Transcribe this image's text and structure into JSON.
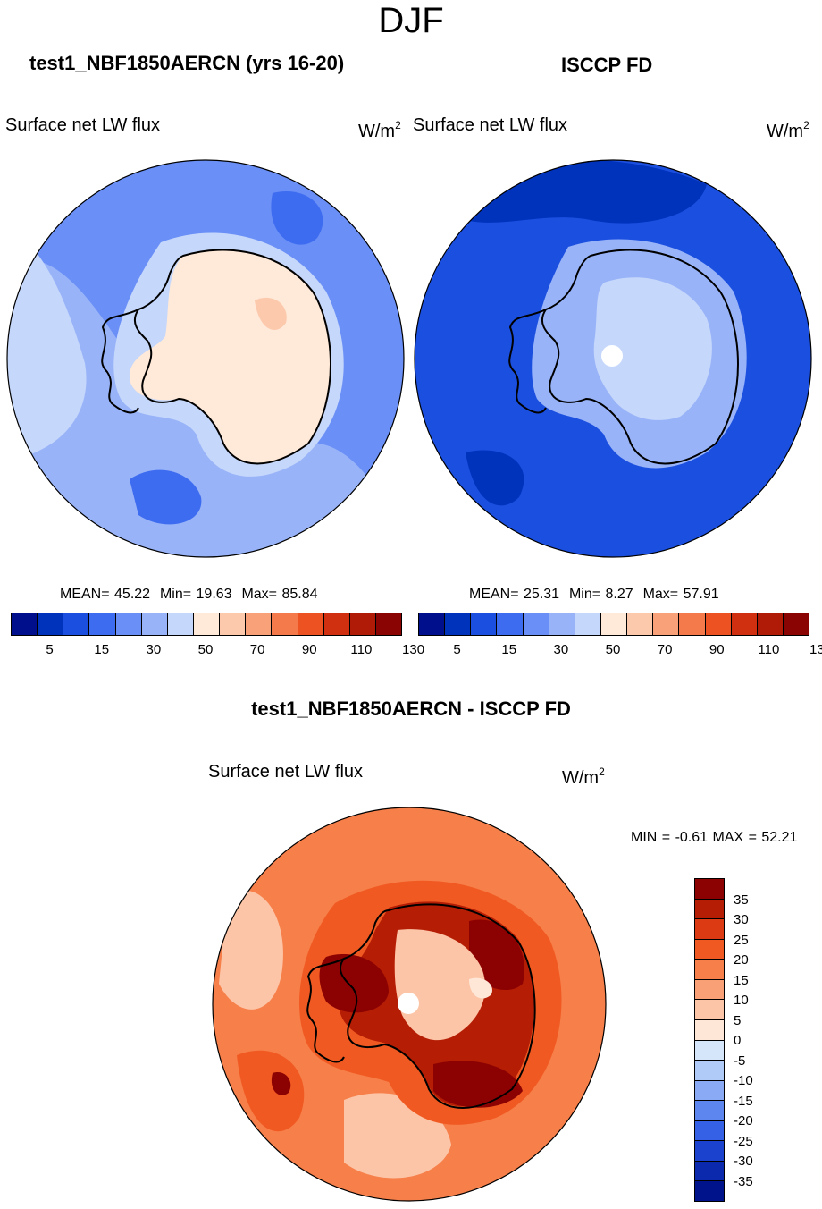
{
  "page": {
    "title": "DJF"
  },
  "panels": [
    {
      "title": "test1_NBF1850AERCN (yrs 16-20)",
      "variable": "Surface net LW flux",
      "unit_base": "W/m",
      "unit_exp": "2",
      "stats": {
        "mean": "MEAN=  45.22",
        "min": "Min=  19.63",
        "max": "Max=  85.84"
      }
    },
    {
      "title": "ISCCP FD",
      "variable": "Surface net LW flux",
      "unit_base": "W/m",
      "unit_exp": "2",
      "stats": {
        "mean": "MEAN=  25.31",
        "min": "Min=   8.27",
        "max": "Max=  57.91"
      }
    }
  ],
  "colorbar_top": {
    "ticks": [
      "5",
      "15",
      "30",
      "50",
      "70",
      "90",
      "110",
      "130"
    ],
    "colors": [
      "#000f8c",
      "#0033bb",
      "#1b4fe0",
      "#3d6cf0",
      "#6a8ff6",
      "#98b3f8",
      "#c5d7fb",
      "#ffe9d8",
      "#fcc9ad",
      "#f9a27a",
      "#f47a4c",
      "#ec5222",
      "#d03010",
      "#b01b08",
      "#8a0404"
    ]
  },
  "diff_panel": {
    "title": "test1_NBF1850AERCN - ISCCP FD",
    "variable": "Surface net LW flux",
    "unit_base": "W/m",
    "unit_exp": "2",
    "minmax": "MIN =  -0.61 MAX =  52.21"
  },
  "colorbar_diff": {
    "ticks": [
      "35",
      "30",
      "25",
      "20",
      "15",
      "10",
      "5",
      "0",
      "-5",
      "-10",
      "-15",
      "-20",
      "-25",
      "-30",
      "-35"
    ],
    "colors": [
      "#8c0202",
      "#b51e05",
      "#dc3a12",
      "#f05a22",
      "#f77f4a",
      "#faa077",
      "#fcc5a7",
      "#fee7d7",
      "#d5e6fa",
      "#b1cbf8",
      "#8aaaf5",
      "#5d86ef",
      "#3461e6",
      "#1a42cf",
      "#0a29ac",
      "#00138a"
    ]
  },
  "map_colors": {
    "ocean_light": "#c5d7fb",
    "ocean_mid": "#98b3f8",
    "ocean_dark": "#6a8ff6",
    "ocean_deep": "#3d6cf0",
    "ice_light": "#ffe9d8",
    "ice_mid": "#fcc9ad",
    "isccp_ocean": "#1b4fe0",
    "isccp_ocean_deep": "#0033bb",
    "isccp_ice": "#c5d7fb",
    "isccp_ice_mid": "#98b3f8",
    "diff_base": "#f77f4a",
    "diff_mid": "#f05a22",
    "diff_dark": "#b51e05",
    "diff_darkest": "#8c0202",
    "diff_light": "#fcc5a7",
    "diff_lightest": "#fee7d7",
    "coast": "#000000"
  }
}
